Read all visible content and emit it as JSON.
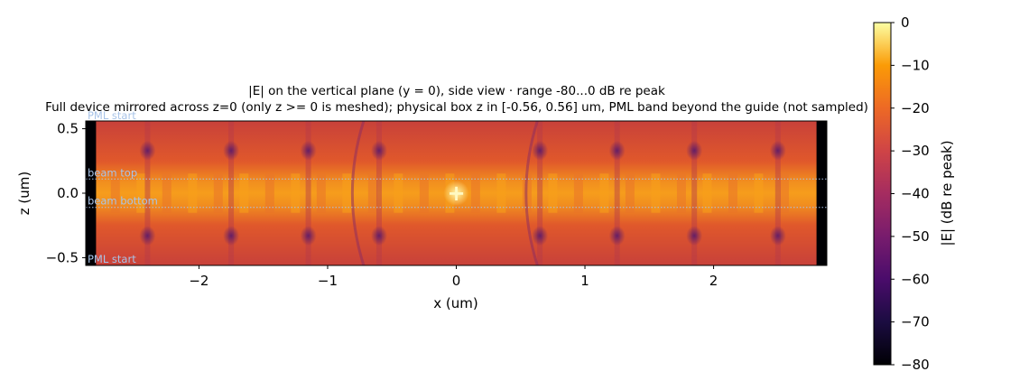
{
  "chart_data": {
    "type": "heatmap",
    "title": "|E| on the vertical plane (y = 0), side view · range -80...0 dB re peak",
    "subtitle": "Full device mirrored across z=0 (only z >= 0 is meshed); physical box z in [-0.56, 0.56] um, PML band beyond the guide (not sampled)",
    "xlabel": "x (um)",
    "ylabel": "z (um)",
    "xlim": [
      -2.88,
      2.88
    ],
    "ylim": [
      -0.56,
      0.56
    ],
    "x_ticks": [
      -2,
      -1,
      0,
      1,
      2
    ],
    "x_tick_labels": [
      "−2",
      "−1",
      "0",
      "1",
      "2"
    ],
    "y_ticks": [
      0.5,
      0.0,
      -0.5
    ],
    "y_tick_labels": [
      "0.5",
      "0.0",
      "−0.5"
    ],
    "colormap": "inferno",
    "colorbar": {
      "label": "|E| (dB re peak)",
      "range": [
        -80,
        0
      ],
      "ticks": [
        0,
        -10,
        -20,
        -30,
        -40,
        -50,
        -60,
        -70,
        -80
      ],
      "tick_labels": [
        "0",
        "−10",
        "−20",
        "−30",
        "−40",
        "−50",
        "−60",
        "−70",
        "−80"
      ]
    },
    "guide_lines": [
      {
        "label": "beam top",
        "z": 0.11,
        "style": "dotted"
      },
      {
        "label": "beam bottom",
        "z": -0.11,
        "style": "dotted"
      }
    ],
    "pml_labels": [
      {
        "label": "PML start",
        "z": 0.56
      },
      {
        "label": "PML start",
        "z": -0.56
      }
    ],
    "source_marker": {
      "x": 0.0,
      "z": 0.0,
      "symbol": "+"
    },
    "field_summary": {
      "core_level_db": -25,
      "cladding_level_db": -38,
      "pml_level_db": -80,
      "node_columns_x": [
        -2.4,
        -1.75,
        -1.15,
        -0.6,
        0.65,
        1.25,
        1.85,
        2.5
      ]
    }
  }
}
